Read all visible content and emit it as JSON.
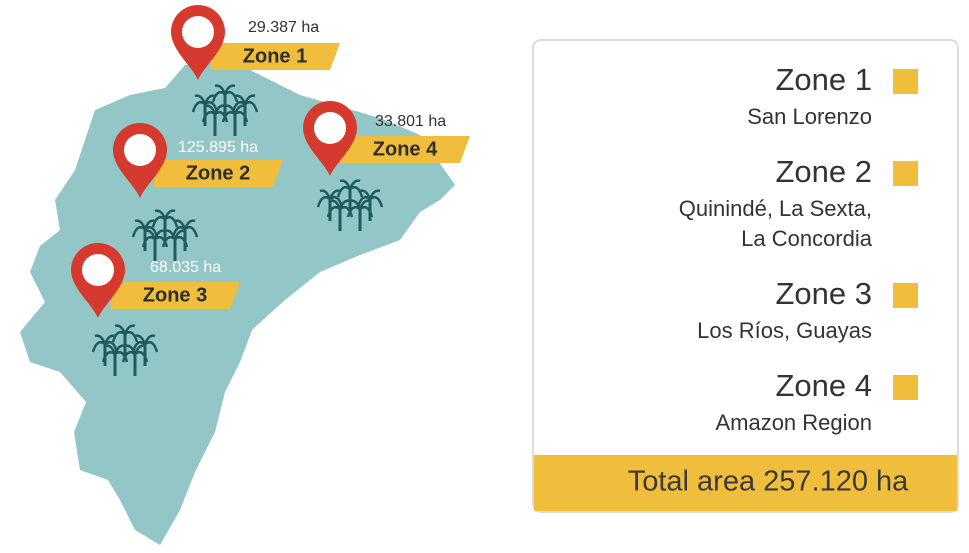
{
  "map": {
    "zones": [
      {
        "label": "Zone 1",
        "area": "29.387 ha"
      },
      {
        "label": "Zone 2",
        "area": "125.895 ha"
      },
      {
        "label": "Zone 3",
        "area": "68.035 ha"
      },
      {
        "label": "Zone 4",
        "area": "33.801 ha"
      }
    ]
  },
  "legend": {
    "items": [
      {
        "zone": "Zone 1",
        "places": [
          "San Lorenzo"
        ]
      },
      {
        "zone": "Zone 2",
        "places": [
          "Quinindé, La Sexta,",
          "La Concordia"
        ]
      },
      {
        "zone": "Zone 3",
        "places": [
          "Los Ríos, Guayas"
        ]
      },
      {
        "zone": "Zone 4",
        "places": [
          "Amazon Region"
        ]
      }
    ],
    "total": "Total area 257.120 ha"
  }
}
